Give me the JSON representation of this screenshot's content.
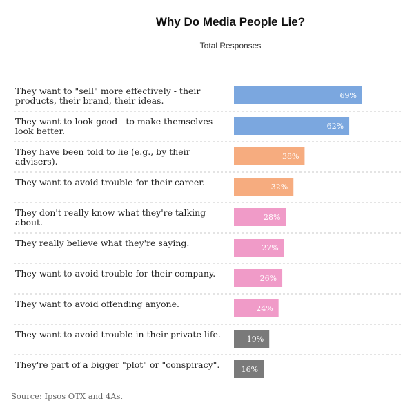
{
  "chart_data": {
    "type": "bar",
    "orientation": "horizontal",
    "title": "Why Do Media People Lie?",
    "subtitle": "Total Responses",
    "unit": "%",
    "categories": [
      [
        "They want to \"sell\" more effectively - their",
        "products, their brand, their ideas."
      ],
      [
        "They want to look good - to make themselves",
        "look better."
      ],
      [
        "They have been told to lie (e.g., by their",
        "advisers)."
      ],
      [
        "They want to avoid trouble for their career."
      ],
      [
        "They don't really know what they're talking",
        "about."
      ],
      [
        "They really believe what they're saying."
      ],
      [
        "They want to avoid trouble for their company."
      ],
      [
        "They want to avoid offending anyone."
      ],
      [
        "They want to avoid trouble in their private life."
      ],
      [
        "They're part of a bigger \"plot\" or \"conspiracy\"."
      ]
    ],
    "values": [
      69,
      62,
      38,
      32,
      28,
      27,
      26,
      24,
      19,
      16
    ],
    "colors": [
      "#7ba7df",
      "#7ba7df",
      "#f6ac7f",
      "#f6ac7f",
      "#f09bc8",
      "#f09bc8",
      "#f09bc8",
      "#f09bc8",
      "#7a7a7a",
      "#7a7a7a"
    ],
    "xlim": [
      0,
      90
    ],
    "grid": false
  },
  "source": "Source: Ipsos OTX and 4As."
}
